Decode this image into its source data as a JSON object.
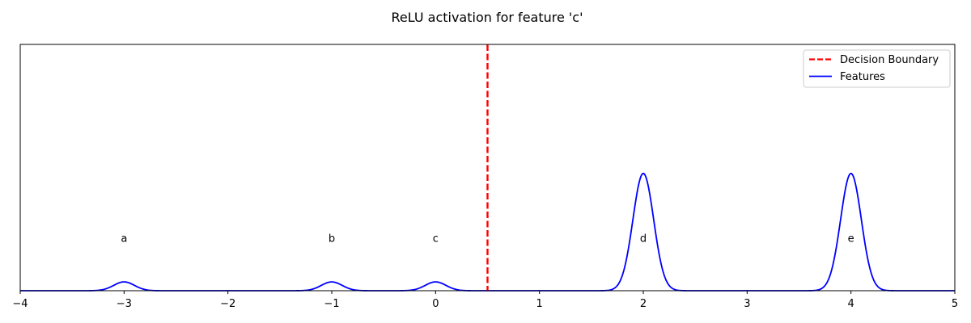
{
  "chart_data": {
    "type": "line",
    "title": "ReLU activation for feature 'c'",
    "xlabel": "",
    "ylabel": "",
    "xlim": [
      -4,
      5
    ],
    "ylim": [
      0,
      2.1
    ],
    "xticks": [
      -4,
      -3,
      -2,
      -1,
      0,
      1,
      2,
      3,
      4,
      5
    ],
    "xtick_labels": [
      "−4",
      "−3",
      "−2",
      "−1",
      "0",
      "1",
      "2",
      "3",
      "4",
      "5"
    ],
    "yticks_shown": false,
    "grid": false,
    "legend": {
      "placement": "top-right",
      "entries": [
        {
          "label": "Decision Boundary",
          "color": "#ff0000",
          "style": "dashed"
        },
        {
          "label": "Features",
          "color": "#0000ff",
          "style": "solid"
        }
      ]
    },
    "series": [
      {
        "name": "Features",
        "color": "#0000ff",
        "style": "solid",
        "curve": "sum of gaussian bumps",
        "peaks": [
          {
            "label": "a",
            "center": -3,
            "height": 0.075,
            "sigma": 0.1
          },
          {
            "label": "b",
            "center": -1,
            "height": 0.075,
            "sigma": 0.1
          },
          {
            "label": "c",
            "center": 0,
            "height": 0.075,
            "sigma": 0.1
          },
          {
            "label": "d",
            "center": 2,
            "height": 1.0,
            "sigma": 0.1
          },
          {
            "label": "e",
            "center": 4,
            "height": 1.0,
            "sigma": 0.1
          }
        ]
      }
    ],
    "decision_boundary": {
      "name": "Decision Boundary",
      "x": 0.5,
      "color": "#ff0000",
      "style": "dashed"
    },
    "peak_labels": [
      {
        "text": "a",
        "x": -3,
        "y": 0.45
      },
      {
        "text": "b",
        "x": -1,
        "y": 0.45
      },
      {
        "text": "c",
        "x": 0,
        "y": 0.45
      },
      {
        "text": "d",
        "x": 2,
        "y": 0.45
      },
      {
        "text": "e",
        "x": 4,
        "y": 0.45
      }
    ]
  }
}
